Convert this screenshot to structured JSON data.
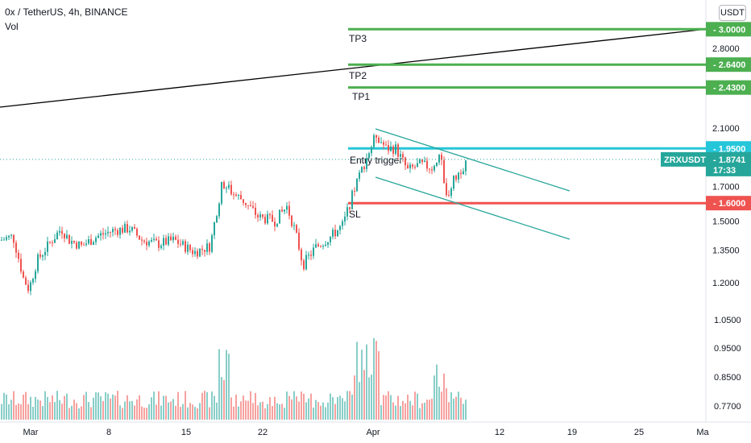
{
  "header": {
    "symbol_line": "0x / TetherUS, 4h, BINANCE",
    "volume_label": "Vol"
  },
  "unit_badge": "USDT",
  "colors": {
    "up": "#26a69a",
    "down": "#ef5350",
    "tp_line": "#4caf50",
    "entry_line": "#26c6da",
    "sl_line": "#ef5350",
    "trend_line": "#000000",
    "channel_line": "#26a69a",
    "current_price_tag": "#26a69a"
  },
  "current_price": {
    "symbol": "ZRXUSDT",
    "value": "1.8741",
    "countdown": "17:33"
  },
  "chart_data": {
    "type": "candlestick",
    "title": "0x / TetherUS, 4h, BINANCE",
    "x_tick_labels": [
      "Mar",
      "8",
      "15",
      "22",
      "Apr",
      "12",
      "19",
      "25",
      "Ma"
    ],
    "y_tick_labels": [
      "2.8000",
      "2.1000",
      "1.7000",
      "1.5000",
      "1.3500",
      "1.2000",
      "1.0500",
      "0.9500",
      "0.8500",
      "0.7700"
    ],
    "ylim": [
      0.7,
      3.1
    ],
    "log_scale": true,
    "price_range_over_period": [
      1.12,
      2.1
    ],
    "levels": [
      {
        "name": "TP3",
        "price": "3.0000",
        "kind": "tp"
      },
      {
        "name": "TP2",
        "price": "2.6400",
        "kind": "tp"
      },
      {
        "name": "TP1",
        "price": "2.4300",
        "kind": "tp"
      },
      {
        "name": "Entry trigger",
        "price": "1.9500",
        "kind": "entry"
      },
      {
        "name": "SL",
        "price": "1.6000",
        "kind": "sl"
      }
    ],
    "series": [
      {
        "name": "ZRXUSDT",
        "description": "4h candles, approximate trend from ~1.40 (Mar) dipping to ~1.15, rallying to ~1.75, pulling back to ~1.30, then breaking out to ~2.10 (Apr) and consolidating in a descending channel around 1.75–1.95"
      }
    ],
    "volume": {
      "label": "Vol",
      "description": "histogram with spikes near 18 Mar and Apr 1"
    },
    "grid": false,
    "legend": "none"
  }
}
